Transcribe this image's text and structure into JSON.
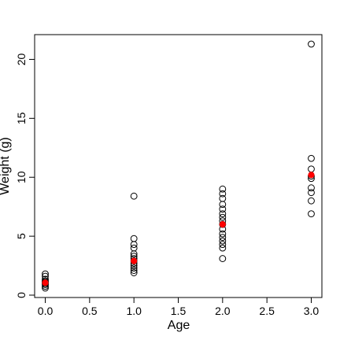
{
  "chart_data": {
    "type": "scatter",
    "xlabel": "Age",
    "ylabel": "Weight (g)",
    "xlim": [
      -0.12,
      3.12
    ],
    "ylim": [
      -0.2,
      22.1
    ],
    "xticks": [
      0.0,
      0.5,
      1.0,
      1.5,
      2.0,
      2.5,
      3.0
    ],
    "xtick_labels": [
      "0.0",
      "0.5",
      "1.0",
      "1.5",
      "2.0",
      "2.5",
      "3.0"
    ],
    "yticks": [
      0,
      5,
      10,
      15,
      20
    ],
    "ytick_labels": [
      "0",
      "5",
      "10",
      "15",
      "20"
    ],
    "grid": false,
    "series": [
      {
        "marker": "open-circle",
        "color": "#000000",
        "points": [
          [
            0,
            0.6
          ],
          [
            0,
            0.75
          ],
          [
            0,
            0.9
          ],
          [
            0,
            1.0
          ],
          [
            0,
            1.1
          ],
          [
            0,
            1.2
          ],
          [
            0,
            1.35
          ],
          [
            0,
            1.6
          ],
          [
            0,
            1.8
          ],
          [
            1,
            1.9
          ],
          [
            1,
            2.1
          ],
          [
            1,
            2.3
          ],
          [
            1,
            2.5
          ],
          [
            1,
            2.7
          ],
          [
            1,
            2.9
          ],
          [
            1,
            3.1
          ],
          [
            1,
            3.3
          ],
          [
            1,
            3.5
          ],
          [
            1,
            4.0
          ],
          [
            1,
            4.3
          ],
          [
            1,
            4.8
          ],
          [
            1,
            8.4
          ],
          [
            2,
            3.1
          ],
          [
            2,
            4.0
          ],
          [
            2,
            4.3
          ],
          [
            2,
            4.6
          ],
          [
            2,
            4.9
          ],
          [
            2,
            5.2
          ],
          [
            2,
            5.6
          ],
          [
            2,
            6.0
          ],
          [
            2,
            6.3
          ],
          [
            2,
            6.6
          ],
          [
            2,
            6.9
          ],
          [
            2,
            7.3
          ],
          [
            2,
            7.7
          ],
          [
            2,
            8.2
          ],
          [
            2,
            8.6
          ],
          [
            2,
            9.0
          ],
          [
            3,
            6.9
          ],
          [
            3,
            8.0
          ],
          [
            3,
            8.7
          ],
          [
            3,
            9.1
          ],
          [
            3,
            9.9
          ],
          [
            3,
            10.1
          ],
          [
            3,
            10.7
          ],
          [
            3,
            11.6
          ],
          [
            3,
            21.3
          ]
        ]
      },
      {
        "marker": "filled-circle",
        "color": "#ff0000",
        "points": [
          [
            0,
            1.05
          ],
          [
            1,
            2.9
          ],
          [
            2,
            6.0
          ],
          [
            3,
            10.2
          ]
        ]
      }
    ]
  }
}
